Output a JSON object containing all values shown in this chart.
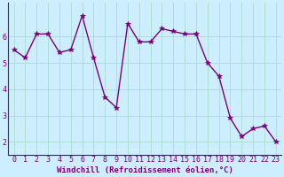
{
  "x": [
    0,
    1,
    2,
    3,
    4,
    5,
    6,
    7,
    8,
    9,
    10,
    11,
    12,
    13,
    14,
    15,
    16,
    17,
    18,
    19,
    20,
    21,
    22,
    23
  ],
  "y": [
    5.5,
    5.2,
    6.1,
    6.1,
    5.4,
    5.5,
    6.8,
    5.2,
    3.7,
    3.3,
    6.5,
    5.8,
    5.8,
    6.3,
    6.2,
    6.1,
    6.1,
    5.0,
    4.5,
    2.9,
    2.2,
    2.5,
    2.6,
    2.0
  ],
  "line_color": "#7b0080",
  "marker": "*",
  "marker_size": 4,
  "bg_color": "#cceeff",
  "grid_color": "#aaddcc",
  "xlabel": "Windchill (Refroidissement éolien,°C)",
  "xlim": [
    -0.5,
    23.5
  ],
  "ylim": [
    1.5,
    7.3
  ],
  "yticks": [
    2,
    3,
    4,
    5,
    6
  ],
  "xticks": [
    0,
    1,
    2,
    3,
    4,
    5,
    6,
    7,
    8,
    9,
    10,
    11,
    12,
    13,
    14,
    15,
    16,
    17,
    18,
    19,
    20,
    21,
    22,
    23
  ],
  "line_width": 1.0,
  "xlabel_fontsize": 6.5,
  "tick_fontsize": 6.0,
  "fig_width": 3.2,
  "fig_height": 2.0,
  "dpi": 100
}
